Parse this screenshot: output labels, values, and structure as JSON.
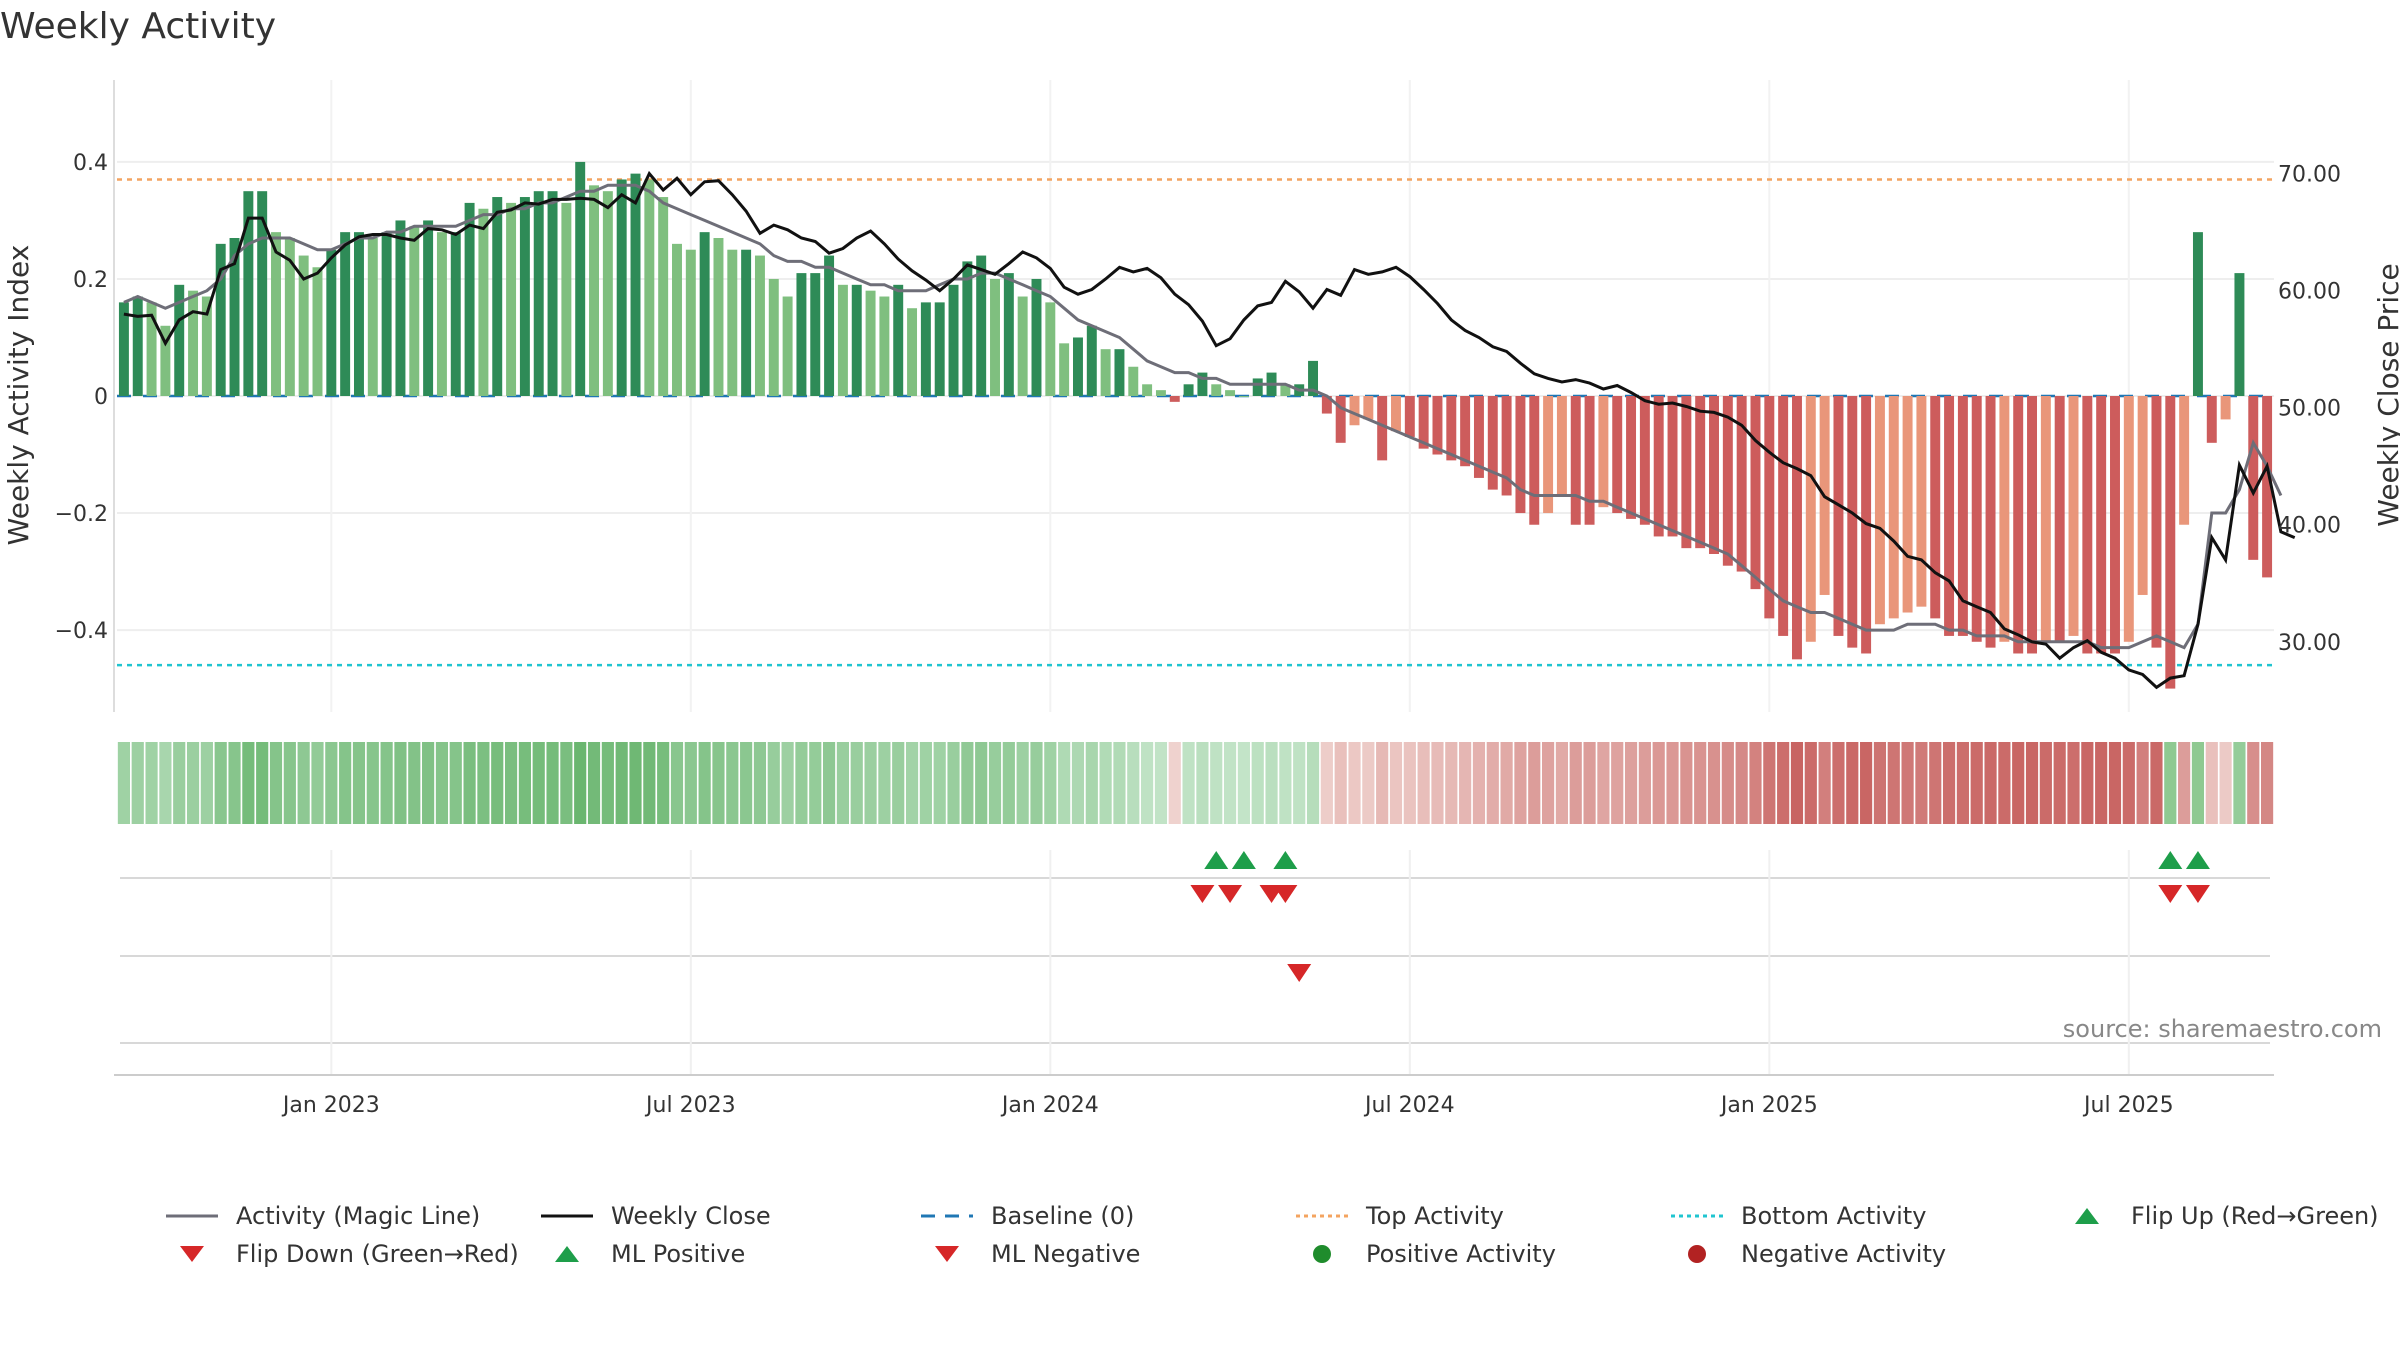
{
  "title": "Weekly Activity",
  "source": "source: sharemaestro.com",
  "colors": {
    "green_dark": "#2e8b57",
    "green_light": "#7fbf7f",
    "red_dark": "#cd5c5c",
    "red_light": "#e9967a",
    "magic_line": "#6e6e78",
    "close": "#111111",
    "baseline": "#1f77b4",
    "top": "#f4a460",
    "bottom": "#20c5d0",
    "marker_green": "#1e9e4a",
    "marker_red": "#d62728"
  },
  "legend": [
    {
      "label": "Activity (Magic Line)",
      "symbol": "line-gray"
    },
    {
      "label": "Weekly Close",
      "symbol": "line-black"
    },
    {
      "label": "Baseline (0)",
      "symbol": "dash-blue"
    },
    {
      "label": "Top Activity",
      "symbol": "dot-orange"
    },
    {
      "label": "Bottom Activity",
      "symbol": "dot-cyan"
    },
    {
      "label": "Flip Up (Red→Green)",
      "symbol": "tri-up-green"
    },
    {
      "label": "Flip Down (Green→Red)",
      "symbol": "tri-down-red"
    },
    {
      "label": "ML Positive",
      "symbol": "tri-up-green"
    },
    {
      "label": "ML Negative",
      "symbol": "tri-down-red"
    },
    {
      "label": "Positive Activity",
      "symbol": "circle-green"
    },
    {
      "label": "Negative Activity",
      "symbol": "circle-darkred"
    }
  ],
  "chart_data": {
    "type": "bar",
    "title": "Weekly Activity",
    "ylabel_left": "Weekly Activity Index",
    "ylabel_right": "Weekly Close Price",
    "ylim_left": [
      -0.54,
      0.54
    ],
    "ylim_right": [
      24,
      78
    ],
    "yticks_left": [
      {
        "v": 0.4,
        "label": "0.4"
      },
      {
        "v": 0.2,
        "label": "0.2"
      },
      {
        "v": 0,
        "label": "0"
      },
      {
        "v": -0.2,
        "label": "−0.2"
      },
      {
        "v": -0.4,
        "label": "−0.4"
      }
    ],
    "yticks_right": [
      {
        "v": 70,
        "label": "70.00"
      },
      {
        "v": 60,
        "label": "60.00"
      },
      {
        "v": 50,
        "label": "50.00"
      },
      {
        "v": 40,
        "label": "40.00"
      },
      {
        "v": 30,
        "label": "30.00"
      }
    ],
    "xticks": [
      "Jan 2023",
      "Jul 2023",
      "Jan 2024",
      "Jul 2024",
      "Jan 2025",
      "Jul 2025"
    ],
    "xtick_weeks": [
      15,
      41,
      67,
      93,
      119,
      145
    ],
    "top_activity": 0.37,
    "bottom_activity": -0.46,
    "baseline": 0,
    "activity": [
      0.16,
      0.17,
      0.16,
      0.12,
      0.19,
      0.18,
      0.17,
      0.26,
      0.27,
      0.35,
      0.35,
      0.28,
      0.27,
      0.24,
      0.22,
      0.25,
      0.28,
      0.28,
      0.27,
      0.28,
      0.3,
      0.29,
      0.3,
      0.28,
      0.28,
      0.33,
      0.32,
      0.34,
      0.33,
      0.34,
      0.35,
      0.35,
      0.33,
      0.4,
      0.36,
      0.35,
      0.37,
      0.38,
      0.37,
      0.34,
      0.26,
      0.25,
      0.28,
      0.27,
      0.25,
      0.25,
      0.24,
      0.2,
      0.17,
      0.21,
      0.21,
      0.24,
      0.19,
      0.19,
      0.18,
      0.17,
      0.19,
      0.15,
      0.16,
      0.16,
      0.19,
      0.23,
      0.24,
      0.2,
      0.21,
      0.17,
      0.2,
      0.16,
      0.09,
      0.1,
      0.12,
      0.08,
      0.08,
      0.05,
      0.02,
      0.01,
      -0.01,
      0.02,
      0.04,
      0.02,
      0.01,
      0.0,
      0.03,
      0.04,
      0.02,
      0.02,
      0.06,
      -0.03,
      -0.08,
      -0.05,
      -0.04,
      -0.11,
      -0.06,
      -0.07,
      -0.09,
      -0.1,
      -0.11,
      -0.12,
      -0.14,
      -0.16,
      -0.17,
      -0.2,
      -0.22,
      -0.2,
      -0.17,
      -0.22,
      -0.22,
      -0.19,
      -0.2,
      -0.21,
      -0.22,
      -0.24,
      -0.24,
      -0.26,
      -0.26,
      -0.27,
      -0.29,
      -0.3,
      -0.33,
      -0.38,
      -0.41,
      -0.45,
      -0.42,
      -0.34,
      -0.41,
      -0.43,
      -0.44,
      -0.39,
      -0.38,
      -0.37,
      -0.36,
      -0.38,
      -0.41,
      -0.41,
      -0.42,
      -0.43,
      -0.42,
      -0.44,
      -0.44,
      -0.42,
      -0.42,
      -0.41,
      -0.44,
      -0.44,
      -0.44,
      -0.42,
      -0.34,
      -0.43,
      -0.5,
      -0.22,
      0.28,
      -0.08,
      -0.04,
      0.21,
      -0.28,
      -0.31
    ],
    "magic_line": [
      0.16,
      0.17,
      0.16,
      0.15,
      0.16,
      0.17,
      0.18,
      0.2,
      0.24,
      0.26,
      0.27,
      0.27,
      0.27,
      0.26,
      0.25,
      0.25,
      0.26,
      0.27,
      0.27,
      0.28,
      0.28,
      0.29,
      0.29,
      0.29,
      0.29,
      0.3,
      0.31,
      0.31,
      0.32,
      0.32,
      0.33,
      0.33,
      0.34,
      0.35,
      0.35,
      0.36,
      0.36,
      0.36,
      0.35,
      0.33,
      0.32,
      0.31,
      0.3,
      0.29,
      0.28,
      0.27,
      0.26,
      0.24,
      0.23,
      0.23,
      0.22,
      0.22,
      0.21,
      0.2,
      0.19,
      0.19,
      0.18,
      0.18,
      0.18,
      0.19,
      0.2,
      0.2,
      0.21,
      0.21,
      0.2,
      0.19,
      0.18,
      0.17,
      0.15,
      0.13,
      0.12,
      0.11,
      0.1,
      0.08,
      0.06,
      0.05,
      0.04,
      0.04,
      0.03,
      0.03,
      0.02,
      0.02,
      0.02,
      0.02,
      0.02,
      0.01,
      0.01,
      0.0,
      -0.02,
      -0.03,
      -0.04,
      -0.05,
      -0.06,
      -0.07,
      -0.08,
      -0.09,
      -0.1,
      -0.11,
      -0.12,
      -0.13,
      -0.14,
      -0.16,
      -0.17,
      -0.17,
      -0.17,
      -0.17,
      -0.18,
      -0.18,
      -0.19,
      -0.2,
      -0.21,
      -0.22,
      -0.23,
      -0.24,
      -0.25,
      -0.26,
      -0.27,
      -0.29,
      -0.31,
      -0.33,
      -0.35,
      -0.36,
      -0.37,
      -0.37,
      -0.38,
      -0.39,
      -0.4,
      -0.4,
      -0.4,
      -0.39,
      -0.39,
      -0.39,
      -0.4,
      -0.4,
      -0.41,
      -0.41,
      -0.41,
      -0.42,
      -0.42,
      -0.42,
      -0.42,
      -0.42,
      -0.42,
      -0.43,
      -0.43,
      -0.43,
      -0.42,
      -0.41,
      -0.42,
      -0.43,
      -0.39,
      -0.2,
      -0.2,
      -0.16,
      -0.08,
      -0.12,
      -0.17
    ],
    "weekly_close": [
      58.0,
      57.8,
      57.9,
      55.5,
      57.5,
      58.2,
      58.0,
      61.8,
      62.3,
      66.2,
      66.2,
      63.3,
      62.6,
      61.0,
      61.5,
      62.8,
      63.9,
      64.6,
      64.8,
      64.8,
      64.5,
      64.3,
      65.3,
      65.2,
      64.8,
      65.6,
      65.3,
      66.7,
      66.9,
      67.5,
      67.4,
      67.8,
      67.8,
      67.9,
      67.8,
      67.1,
      68.2,
      67.5,
      70.0,
      68.6,
      69.6,
      68.2,
      69.3,
      69.4,
      68.2,
      66.8,
      64.9,
      65.6,
      65.2,
      64.5,
      64.2,
      63.2,
      63.6,
      64.5,
      65.1,
      64.0,
      62.7,
      61.7,
      60.9,
      60.0,
      61.0,
      62.2,
      61.8,
      61.4,
      62.3,
      63.3,
      62.8,
      61.9,
      60.3,
      59.7,
      60.1,
      61.0,
      62.0,
      61.6,
      61.9,
      61.1,
      59.7,
      58.8,
      57.4,
      55.3,
      55.9,
      57.5,
      58.7,
      59.0,
      60.8,
      59.9,
      58.5,
      60.1,
      59.6,
      61.8,
      61.4,
      61.6,
      62.0,
      61.2,
      60.1,
      58.9,
      57.5,
      56.6,
      56.0,
      55.2,
      54.8,
      53.8,
      52.9,
      52.5,
      52.2,
      52.4,
      52.1,
      51.6,
      51.9,
      51.3,
      50.6,
      50.3,
      50.4,
      50.1,
      49.7,
      49.6,
      49.2,
      48.5,
      47.2,
      46.2,
      45.3,
      44.8,
      44.2,
      42.4,
      41.7,
      41.0,
      40.1,
      39.7,
      38.6,
      37.3,
      37.0,
      35.9,
      35.2,
      33.5,
      33.0,
      32.5,
      31.1,
      30.6,
      30.0,
      29.8,
      28.6,
      29.5,
      30.1,
      29.1,
      28.6,
      27.6,
      27.2,
      26.1,
      26.9,
      27.1,
      31.5,
      38.9,
      37.0,
      45.1,
      42.7,
      45.0,
      39.4,
      38.9
    ],
    "ml_positive_weeks": [
      79,
      81,
      84,
      148,
      150
    ],
    "ml_negative_weeks": [
      78,
      80,
      83,
      84,
      148,
      150
    ],
    "flip_down_weeks": [
      85
    ]
  }
}
